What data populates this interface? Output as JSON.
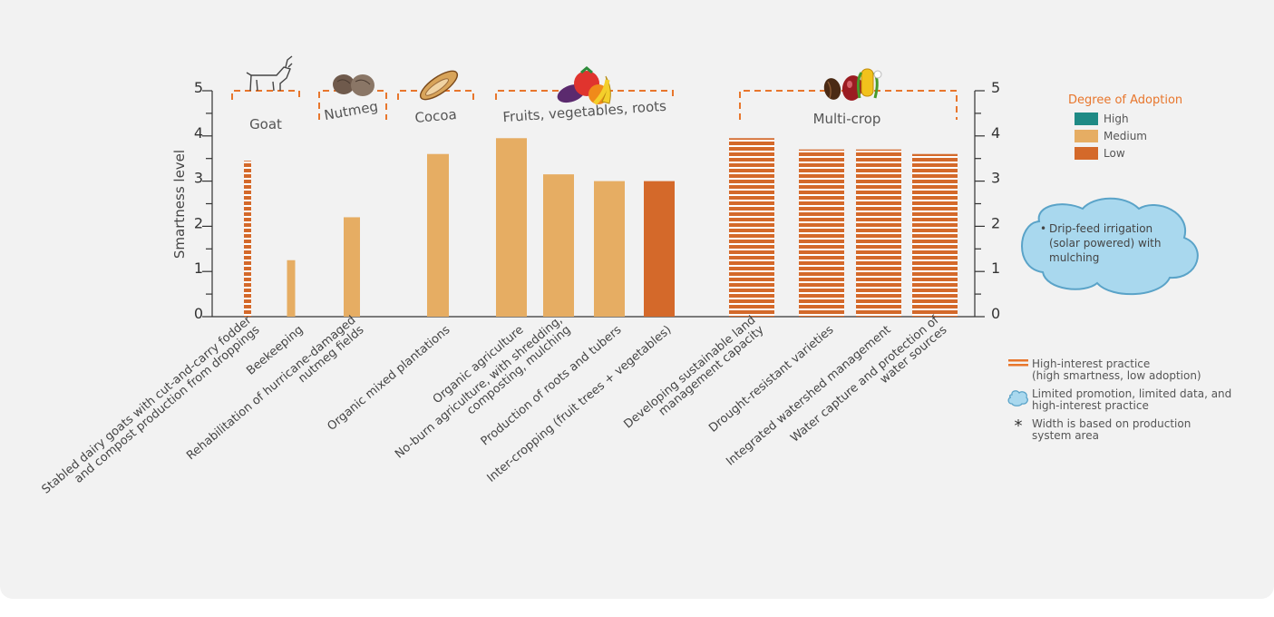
{
  "chart_data": {
    "type": "bar",
    "ylabel": "Smartness level",
    "ylim": [
      0,
      5
    ],
    "yticks": [
      0,
      1,
      2,
      3,
      4,
      5
    ],
    "categories": [
      "Stabled dairy goats with cut-and-carry fodder\nand compost production from droppings",
      "Beekeeping",
      "Rehabilitation of hurricane-damaged\nnutmeg fields",
      "Organic mixed plantations",
      "Organic agriculture",
      "No-burn agriculture, with shredding,\ncomposting, mulching",
      "Production of roots and tubers",
      "Inter-cropping (fruit trees + vegetables)",
      "Developing sustainable land\nmanagement capacity",
      "Drought-resistant varieties",
      "Integrated watershed management",
      "Water capture and protection of\nwater sources"
    ],
    "values": [
      3.45,
      1.25,
      2.2,
      3.6,
      3.95,
      3.15,
      3.0,
      3.0,
      3.95,
      3.7,
      3.7,
      3.6
    ],
    "adoption": [
      "Low",
      "Medium",
      "Medium",
      "Medium",
      "Medium",
      "Medium",
      "Medium",
      "Low",
      "Low",
      "Low",
      "Low",
      "Low"
    ],
    "high_interest": [
      true,
      false,
      false,
      false,
      false,
      false,
      false,
      false,
      true,
      true,
      true,
      true
    ],
    "groups": [
      {
        "label": "Goat",
        "icon": "goat-icon"
      },
      {
        "label": "Nutmeg",
        "icon": "nutmeg-icon"
      },
      {
        "label": "Cocoa",
        "icon": "cocoa-icon"
      },
      {
        "label": "Fruits, vegetables, roots",
        "icon": "fruits-vegetables-icon"
      },
      {
        "label": "Multi-crop",
        "icon": "multi-crop-icon"
      }
    ],
    "legend": {
      "title": "Degree of Adoption",
      "items": [
        {
          "label": "High",
          "color": "#1f8a85"
        },
        {
          "label": "Medium",
          "color": "#e6ad63"
        },
        {
          "label": "Low",
          "color": "#d4692a"
        }
      ]
    },
    "key": [
      {
        "symbol": "striped-line-icon",
        "text": "High-interest practice\n(high smartness, low adoption)"
      },
      {
        "symbol": "cloud-icon",
        "text": "Limited promotion, limited data, and\nhigh-interest practice"
      },
      {
        "symbol": "asterisk-icon",
        "text": "Width is based on production\nsystem area"
      }
    ],
    "callout": "Drip-feed irrigation (solar powered) with mulching",
    "callout_bullet": "•"
  },
  "colors": {
    "orange_accent": "#e8762c",
    "cloud_fill": "#a9d8ee",
    "cloud_stroke": "#5aa3c8",
    "axis": "#333333"
  }
}
